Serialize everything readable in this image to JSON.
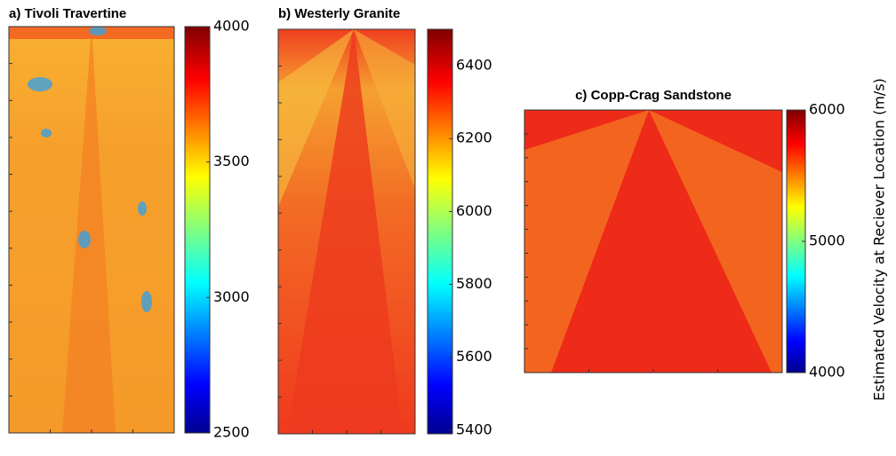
{
  "chart_data": [
    {
      "type": "heatmap",
      "title": "a) Tivoli Travertine",
      "clim": [
        2500,
        4000
      ],
      "cticks": [
        2500,
        3000,
        3500,
        4000
      ],
      "colormap": "jet"
    },
    {
      "type": "heatmap",
      "title": "b) Westerly Granite",
      "clim": [
        5390,
        6500
      ],
      "cticks": [
        5400,
        5600,
        5800,
        6000,
        6200,
        6400
      ],
      "colormap": "jet"
    },
    {
      "type": "heatmap",
      "title": "c) Copp-Crag Sandstone",
      "clim": [
        4000,
        6000
      ],
      "cticks": [
        4000,
        5000,
        6000
      ],
      "colormap": "jet"
    }
  ],
  "shared_label": "Estimated Velocity at Reciever Location (m/s)"
}
